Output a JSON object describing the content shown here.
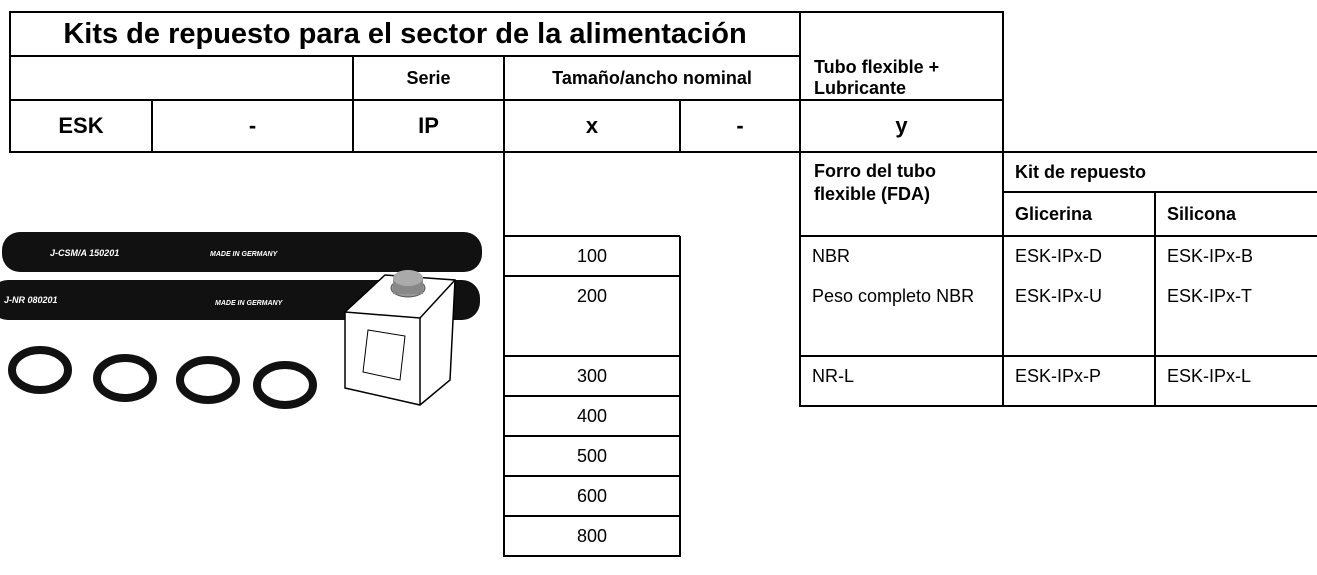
{
  "header": {
    "title": "Kits de repuesto para el sector de la alimentación",
    "serie": "Serie",
    "size_header": "Tamaño/ancho nominal",
    "tube_header": "Tubo flexible + Lubricante"
  },
  "code": [
    "ESK",
    "-",
    "IP",
    "x",
    "-",
    "y"
  ],
  "sizes": [
    100,
    200,
    300,
    400,
    500,
    600,
    800
  ],
  "liner_table": {
    "liner_header": "Forro del tubo flexible (FDA)",
    "kit_header": "Kit de repuesto",
    "columns": [
      "Glicerina",
      "Silicona"
    ],
    "rows": [
      [
        "NBR",
        "ESK-IPx-D",
        "ESK-IPx-B"
      ],
      [
        "Peso completo NBR",
        "ESK-IPx-U",
        "ESK-IPx-T"
      ],
      [
        "NR-L",
        "ESK-IPx-P",
        "ESK-IPx-L"
      ]
    ]
  },
  "image_labels": [
    [
      "J-CSM/A 150201",
      "MADE IN GERMANY"
    ],
    [
      "J-NR 080201",
      "MADE IN GERMANY"
    ]
  ]
}
